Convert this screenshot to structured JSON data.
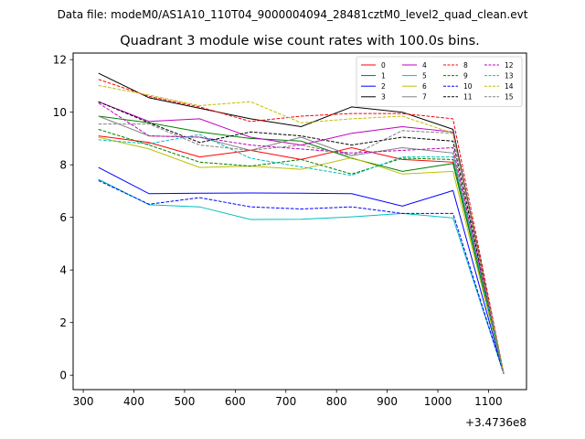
{
  "suptitle": "Data file: modeM0/AS1A10_110T04_9000004094_28481cztM0_level2_quad_clean.evt",
  "chart_data": {
    "type": "line",
    "title": "Quadrant 3 module wise count rates with 100.0s bins.",
    "xlabel": "",
    "ylabel": "",
    "x_offset_label": "+3.4736e8",
    "xlim": [
      280,
      1175
    ],
    "ylim": [
      -0.55,
      12.25
    ],
    "xticks": [
      300,
      400,
      500,
      600,
      700,
      800,
      900,
      1000,
      1100
    ],
    "yticks": [
      0,
      2,
      4,
      6,
      8,
      10,
      12
    ],
    "legend_position": "top-right",
    "legend_columns": 4,
    "x": [
      330,
      430,
      530,
      630,
      730,
      830,
      930,
      1030,
      1130
    ],
    "series": [
      {
        "name": "0",
        "color": "#ff0000",
        "dash": "solid",
        "values": [
          9.1,
          8.85,
          8.3,
          8.55,
          8.2,
          8.65,
          8.2,
          8.1,
          0.05
        ]
      },
      {
        "name": "1",
        "color": "#008000",
        "dash": "solid",
        "values": [
          9.85,
          9.6,
          9.25,
          9.0,
          8.9,
          8.25,
          7.75,
          8.05,
          0.05
        ]
      },
      {
        "name": "2",
        "color": "#0000ff",
        "dash": "solid",
        "values": [
          7.9,
          6.9,
          6.92,
          6.93,
          6.92,
          6.9,
          6.43,
          7.02,
          0.05
        ]
      },
      {
        "name": "3",
        "color": "#000000",
        "dash": "solid",
        "values": [
          11.48,
          10.55,
          10.15,
          9.75,
          9.45,
          10.2,
          10.0,
          9.35,
          0.05
        ]
      },
      {
        "name": "4",
        "color": "#bf00bf",
        "dash": "solid",
        "values": [
          10.4,
          9.65,
          9.75,
          9.05,
          8.75,
          9.2,
          9.45,
          9.25,
          0.05
        ]
      },
      {
        "name": "5",
        "color": "#00bfbf",
        "dash": "solid",
        "values": [
          7.45,
          6.48,
          6.4,
          5.92,
          5.93,
          6.02,
          6.15,
          5.98,
          0.05
        ]
      },
      {
        "name": "6",
        "color": "#bfbf00",
        "dash": "solid",
        "values": [
          9.05,
          8.6,
          7.9,
          7.95,
          7.83,
          8.27,
          7.65,
          7.75,
          0.05
        ]
      },
      {
        "name": "7",
        "color": "#808080",
        "dash": "solid",
        "values": [
          9.85,
          9.1,
          9.05,
          8.55,
          9.05,
          8.35,
          8.65,
          8.45,
          0.05
        ]
      },
      {
        "name": "8",
        "color": "#ff0000",
        "dash": "dashed",
        "values": [
          11.25,
          10.6,
          10.2,
          9.65,
          9.85,
          9.95,
          9.95,
          9.75,
          0.05
        ]
      },
      {
        "name": "9",
        "color": "#008000",
        "dash": "dashed",
        "values": [
          9.35,
          8.75,
          8.1,
          7.95,
          8.2,
          7.65,
          8.25,
          8.2,
          0.05
        ]
      },
      {
        "name": "10",
        "color": "#0000ff",
        "dash": "dashed",
        "values": [
          7.4,
          6.5,
          6.75,
          6.4,
          6.32,
          6.4,
          6.15,
          6.15,
          0.05
        ]
      },
      {
        "name": "11",
        "color": "#000000",
        "dash": "dashed",
        "values": [
          10.4,
          9.6,
          8.85,
          9.25,
          9.1,
          8.75,
          9.05,
          8.9,
          0.05
        ]
      },
      {
        "name": "12",
        "color": "#bf00bf",
        "dash": "dashed",
        "values": [
          10.35,
          9.1,
          9.05,
          8.75,
          8.6,
          8.45,
          8.55,
          8.65,
          0.05
        ]
      },
      {
        "name": "13",
        "color": "#00bfbf",
        "dash": "dashed",
        "values": [
          8.95,
          8.8,
          9.15,
          8.25,
          7.92,
          7.6,
          8.3,
          8.3,
          0.05
        ]
      },
      {
        "name": "14",
        "color": "#bfbf00",
        "dash": "dashed",
        "values": [
          11.02,
          10.65,
          10.25,
          10.4,
          9.6,
          9.75,
          9.85,
          9.2,
          0.05
        ]
      },
      {
        "name": "15",
        "color": "#808080",
        "dash": "dashed",
        "values": [
          9.55,
          9.55,
          8.75,
          8.55,
          8.75,
          8.35,
          9.3,
          9.2,
          0.05
        ]
      }
    ]
  }
}
